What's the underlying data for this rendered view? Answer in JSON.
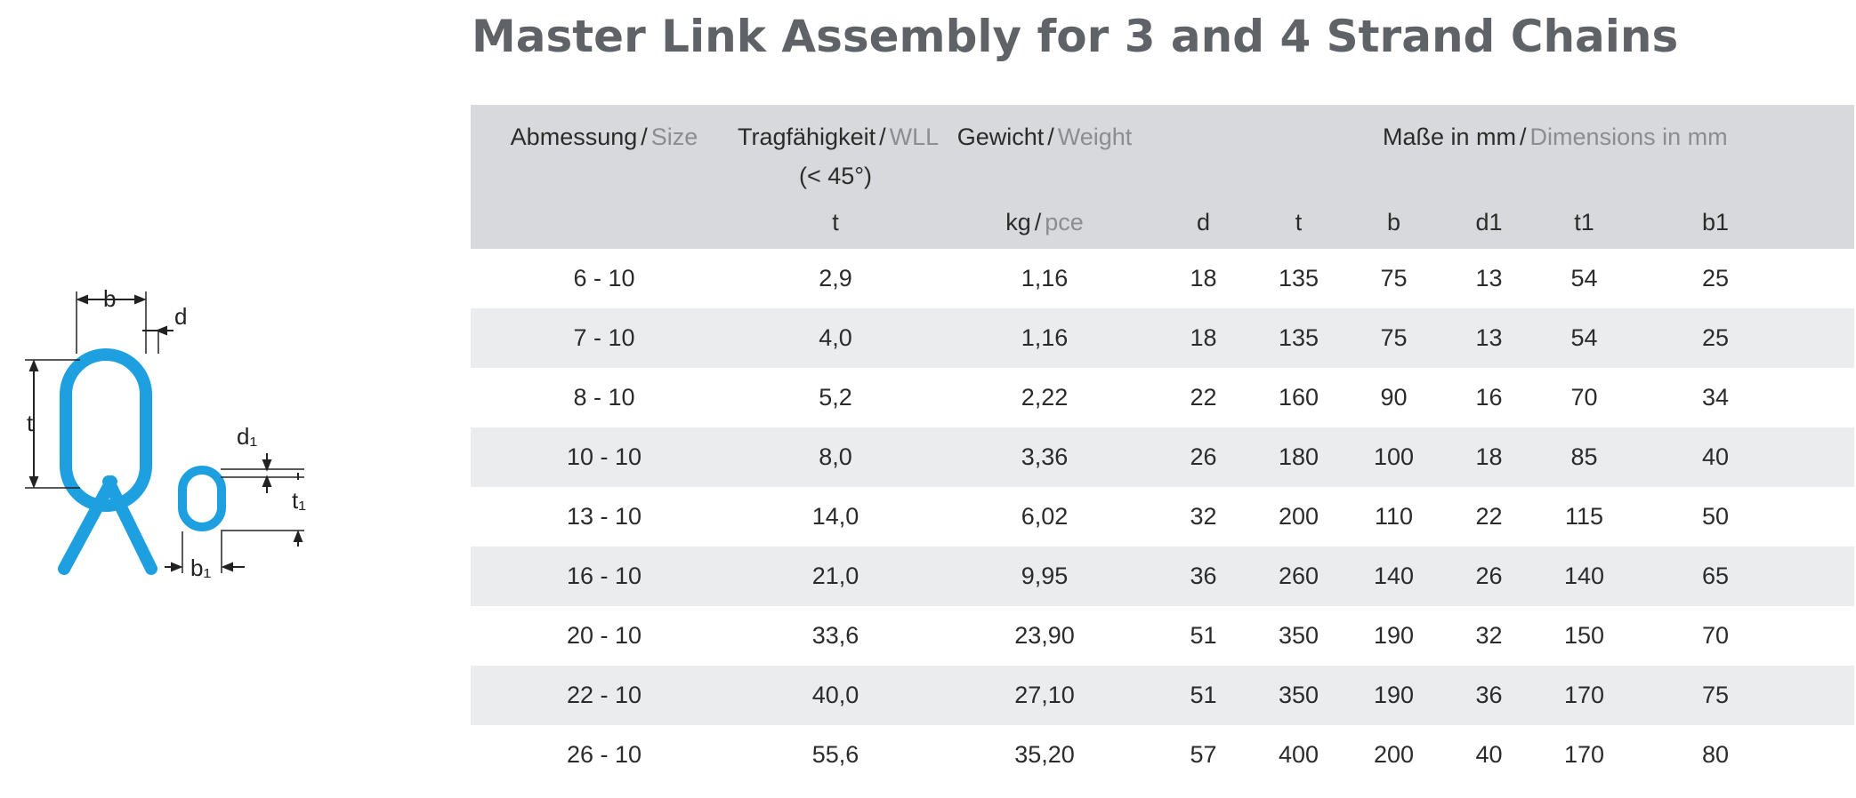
{
  "title": "Master Link Assembly for 3 and 4 Strand Chains",
  "colors": {
    "title": "#5f6266",
    "header_bg": "#d8d9dc",
    "stripe_bg": "#ebecee",
    "link_blue": "#1ea0e0"
  },
  "diagram": {
    "labels": {
      "b": "b",
      "d": "d",
      "t": "t",
      "d1": "d₁",
      "t1": "t₁",
      "b1": "b₁"
    }
  },
  "table": {
    "headers": {
      "size_de": "Abmessung",
      "size_en": "Size",
      "wll_de": "Tragfähigkeit",
      "wll_en": "WLL",
      "wll_note": "(< 45°)",
      "weight_de": "Gewicht",
      "weight_en": "Weight",
      "dims_de": "Maße in mm",
      "dims_en": "Dimensions in mm"
    },
    "units": {
      "wll": "t",
      "weight_de": "kg",
      "weight_en": "pce",
      "d": "d",
      "t": "t",
      "b": "b",
      "d1": "d1",
      "t1": "t1",
      "b1": "b1"
    },
    "rows": [
      [
        "6 - 10",
        "2,9",
        "1,16",
        "18",
        "135",
        "75",
        "13",
        "54",
        "25"
      ],
      [
        "7 - 10",
        "4,0",
        "1,16",
        "18",
        "135",
        "75",
        "13",
        "54",
        "25"
      ],
      [
        "8 - 10",
        "5,2",
        "2,22",
        "22",
        "160",
        "90",
        "16",
        "70",
        "34"
      ],
      [
        "10 - 10",
        "8,0",
        "3,36",
        "26",
        "180",
        "100",
        "18",
        "85",
        "40"
      ],
      [
        "13 - 10",
        "14,0",
        "6,02",
        "32",
        "200",
        "110",
        "22",
        "115",
        "50"
      ],
      [
        "16 - 10",
        "21,0",
        "9,95",
        "36",
        "260",
        "140",
        "26",
        "140",
        "65"
      ],
      [
        "20 - 10",
        "33,6",
        "23,90",
        "51",
        "350",
        "190",
        "32",
        "150",
        "70"
      ],
      [
        "22 - 10",
        "40,0",
        "27,10",
        "51",
        "350",
        "190",
        "36",
        "170",
        "75"
      ],
      [
        "26 - 10",
        "55,6",
        "35,20",
        "57",
        "400",
        "200",
        "40",
        "170",
        "80"
      ]
    ]
  }
}
